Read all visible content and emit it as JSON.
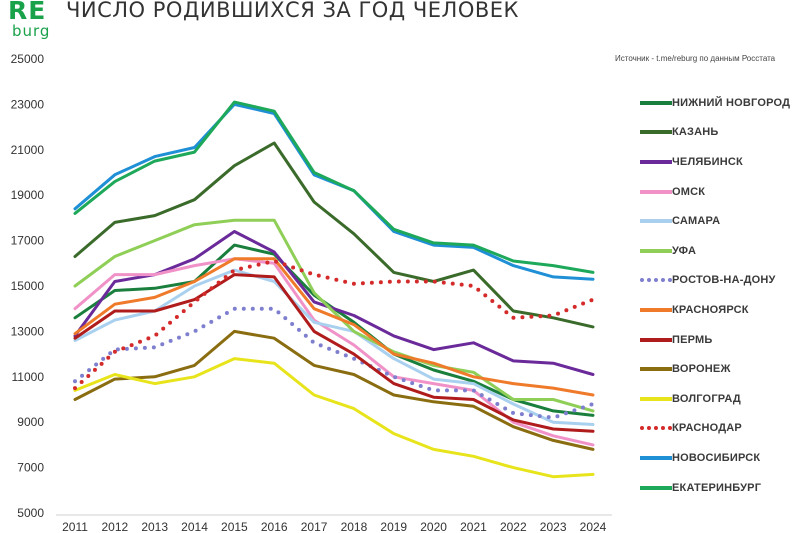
{
  "logo": {
    "top": "RE",
    "bottom": "burg"
  },
  "source_note": "Источник - t.me/reburg по данным Росстата",
  "chart_data": {
    "type": "line",
    "title": "ЧИСЛО РОДИВШИХСЯ ЗА ГОД ЧЕЛОВЕК",
    "xlabel": "",
    "ylabel": "",
    "x": [
      2011,
      2012,
      2013,
      2014,
      2015,
      2016,
      2017,
      2018,
      2019,
      2020,
      2021,
      2022,
      2023,
      2024
    ],
    "yticks": [
      5000,
      7000,
      9000,
      11000,
      13000,
      15000,
      17000,
      19000,
      21000,
      23000,
      25000
    ],
    "ylim": [
      5000,
      25000
    ],
    "grid": false,
    "legend_position": "right",
    "series": [
      {
        "name": "НИЖНИЙ НОВГОРОД",
        "color": "#1a7f3c",
        "dashed": false,
        "values": [
          13600,
          14800,
          14900,
          15200,
          16800,
          16400,
          14600,
          13400,
          12000,
          11300,
          10800,
          10000,
          9500,
          9300
        ]
      },
      {
        "name": "КАЗАНЬ",
        "color": "#3a6b2a",
        "dashed": false,
        "values": [
          16300,
          17800,
          18100,
          18800,
          20300,
          21300,
          18700,
          17300,
          15600,
          15200,
          15700,
          13900,
          13600,
          13200
        ]
      },
      {
        "name": "ЧЕЛЯБИНСК",
        "color": "#6a2a9a",
        "dashed": false,
        "values": [
          12800,
          15200,
          15500,
          16200,
          17400,
          16500,
          14300,
          13700,
          12800,
          12200,
          12500,
          11700,
          11600,
          11100
        ]
      },
      {
        "name": "ОМСК",
        "color": "#f092c8",
        "dashed": false,
        "values": [
          14000,
          15500,
          15500,
          15900,
          16200,
          16000,
          13500,
          12400,
          11000,
          10700,
          10400,
          9000,
          8400,
          8000
        ]
      },
      {
        "name": "САМАРА",
        "color": "#a9d0ef",
        "dashed": false,
        "values": [
          12600,
          13500,
          13900,
          15000,
          15700,
          15200,
          13400,
          13000,
          11800,
          10900,
          10700,
          9800,
          9000,
          8900
        ]
      },
      {
        "name": "УФА",
        "color": "#8fcf57",
        "dashed": false,
        "values": [
          15000,
          16300,
          17000,
          17700,
          17900,
          17900,
          14700,
          13000,
          12100,
          11500,
          11200,
          10000,
          10000,
          9500
        ]
      },
      {
        "name": "РОСТОВ-НА-ДОНУ",
        "color": "#7f7fcf",
        "dashed": true,
        "values": [
          10800,
          12200,
          12300,
          13000,
          14000,
          14000,
          12500,
          11800,
          11000,
          10400,
          10400,
          9400,
          9200,
          9800
        ]
      },
      {
        "name": "КРАСНОЯРСК",
        "color": "#ef7a2a",
        "dashed": false,
        "values": [
          12900,
          14200,
          14500,
          15200,
          16200,
          16200,
          14000,
          13300,
          12000,
          11600,
          11000,
          10700,
          10500,
          10200
        ]
      },
      {
        "name": "ПЕРМЬ",
        "color": "#b01c1c",
        "dashed": false,
        "values": [
          12700,
          13900,
          13900,
          14400,
          15500,
          15400,
          13000,
          12000,
          10700,
          10100,
          10000,
          9100,
          8700,
          8600
        ]
      },
      {
        "name": "ВОРОНЕЖ",
        "color": "#8a6d10",
        "dashed": false,
        "values": [
          10000,
          10900,
          11000,
          11500,
          13000,
          12700,
          11500,
          11100,
          10200,
          9900,
          9700,
          8800,
          8200,
          7800
        ]
      },
      {
        "name": "ВОЛГОГРАД",
        "color": "#e8e41c",
        "dashed": false,
        "values": [
          10400,
          11100,
          10700,
          11000,
          11800,
          11600,
          10200,
          9600,
          8500,
          7800,
          7500,
          7000,
          6600,
          6700
        ]
      },
      {
        "name": "КРАСНОДАР",
        "color": "#d42a2a",
        "dashed": true,
        "values": [
          10500,
          12100,
          12800,
          14300,
          15700,
          16100,
          15500,
          15100,
          15200,
          15200,
          15000,
          13600,
          13700,
          14400
        ]
      },
      {
        "name": "НОВОСИБИРСК",
        "color": "#1f8fd6",
        "dashed": false,
        "values": [
          18400,
          19900,
          20700,
          21100,
          23000,
          22600,
          19900,
          19200,
          17400,
          16800,
          16700,
          15900,
          15400,
          15300
        ]
      },
      {
        "name": "ЕКАТЕРИНБУРГ",
        "color": "#1ea85a",
        "dashed": false,
        "values": [
          18200,
          19600,
          20500,
          20900,
          23100,
          22700,
          20000,
          19200,
          17500,
          16900,
          16800,
          16100,
          15900,
          15600
        ]
      }
    ]
  }
}
